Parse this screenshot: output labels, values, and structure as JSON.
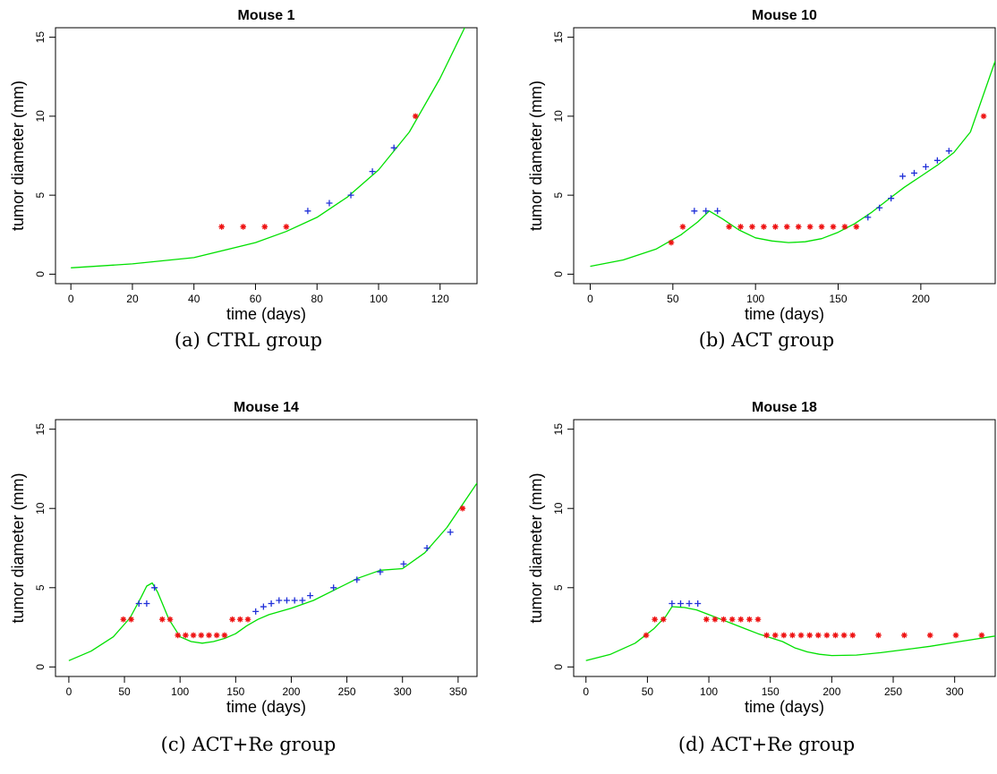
{
  "colors": {
    "fit": "#00e000",
    "observed": "#1f2fd8",
    "censored": "#ee1111",
    "axis": "#000000"
  },
  "chart_data": [
    {
      "type": "scatter",
      "title": "Mouse 1",
      "caption": "(a) CTRL group",
      "xlabel": "time (days)",
      "ylabel": "tumor diameter (mm)",
      "xlim": [
        -5,
        132
      ],
      "ylim": [
        -0.6,
        15.6
      ],
      "xticks": [
        0,
        20,
        40,
        60,
        80,
        100,
        120
      ],
      "yticks": [
        0,
        5,
        10,
        15
      ],
      "series": [
        {
          "marker": "plus",
          "color": "#1f2fd8",
          "x": [
            77,
            84,
            91,
            98,
            105
          ],
          "y": [
            4,
            4.5,
            5,
            6.5,
            8
          ]
        },
        {
          "marker": "asterisk",
          "color": "#ee1111",
          "x": [
            49,
            56,
            63,
            70,
            112
          ],
          "y": [
            3,
            3,
            3,
            3,
            10
          ]
        },
        {
          "marker": "line",
          "color": "#00e000",
          "x": [
            0,
            20,
            40,
            60,
            70,
            80,
            90,
            100,
            110,
            120,
            128
          ],
          "y": [
            0.4,
            0.65,
            1.05,
            2.0,
            2.7,
            3.6,
            4.9,
            6.6,
            9.0,
            12.4,
            15.6
          ]
        }
      ]
    },
    {
      "type": "scatter",
      "title": "Mouse 10",
      "caption": "(b) ACT group",
      "xlabel": "time (days)",
      "ylabel": "tumor diameter (mm)",
      "xlim": [
        -10,
        245
      ],
      "ylim": [
        -0.6,
        15.6
      ],
      "xticks": [
        0,
        50,
        100,
        150,
        200
      ],
      "yticks": [
        0,
        5,
        10,
        15
      ],
      "series": [
        {
          "marker": "plus",
          "color": "#1f2fd8",
          "x": [
            63,
            70,
            77,
            168,
            175,
            182,
            189,
            196,
            203,
            210,
            217
          ],
          "y": [
            4,
            4,
            4,
            3.6,
            4.2,
            4.8,
            6.2,
            6.4,
            6.8,
            7.2,
            7.8
          ]
        },
        {
          "marker": "asterisk",
          "color": "#ee1111",
          "x": [
            49,
            56,
            84,
            91,
            98,
            105,
            112,
            119,
            126,
            133,
            140,
            147,
            154,
            161,
            238
          ],
          "y": [
            2,
            3,
            3,
            3,
            3,
            3,
            3,
            3,
            3,
            3,
            3,
            3,
            3,
            3,
            10
          ]
        },
        {
          "marker": "line",
          "color": "#00e000",
          "x": [
            0,
            20,
            40,
            55,
            65,
            72,
            80,
            90,
            100,
            110,
            120,
            130,
            140,
            150,
            160,
            170,
            180,
            190,
            200,
            210,
            220,
            230,
            245
          ],
          "y": [
            0.5,
            0.9,
            1.6,
            2.5,
            3.3,
            4.0,
            3.5,
            2.8,
            2.3,
            2.1,
            2.0,
            2.05,
            2.25,
            2.65,
            3.2,
            3.9,
            4.7,
            5.5,
            6.2,
            6.9,
            7.7,
            9.0,
            13.5
          ]
        }
      ]
    },
    {
      "type": "scatter",
      "title": "Mouse 14",
      "caption": "(c) ACT+Re group",
      "xlabel": "time (days)",
      "ylabel": "tumor diameter (mm)",
      "xlim": [
        -12,
        367
      ],
      "ylim": [
        -0.6,
        15.6
      ],
      "xticks": [
        0,
        50,
        100,
        150,
        200,
        250,
        300,
        350
      ],
      "yticks": [
        0,
        5,
        10,
        15
      ],
      "series": [
        {
          "marker": "plus",
          "color": "#1f2fd8",
          "x": [
            63,
            70,
            77,
            168,
            175,
            182,
            189,
            196,
            203,
            210,
            217,
            238,
            259,
            280,
            301,
            322,
            343
          ],
          "y": [
            4,
            4,
            5,
            3.5,
            3.8,
            4,
            4.2,
            4.2,
            4.2,
            4.2,
            4.5,
            5,
            5.5,
            6,
            6.5,
            7.5,
            8.5
          ]
        },
        {
          "marker": "asterisk",
          "color": "#ee1111",
          "x": [
            49,
            56,
            84,
            91,
            98,
            105,
            112,
            119,
            126,
            133,
            140,
            147,
            154,
            161,
            354
          ],
          "y": [
            3,
            3,
            3,
            3,
            2,
            2,
            2,
            2,
            2,
            2,
            2,
            3,
            3,
            3,
            10
          ]
        },
        {
          "marker": "line",
          "color": "#00e000",
          "x": [
            0,
            20,
            40,
            55,
            65,
            70,
            75,
            80,
            90,
            100,
            110,
            120,
            130,
            140,
            150,
            160,
            170,
            180,
            200,
            220,
            240,
            260,
            280,
            300,
            320,
            340,
            367
          ],
          "y": [
            0.4,
            1.0,
            1.9,
            3.1,
            4.4,
            5.1,
            5.3,
            4.7,
            3.0,
            1.9,
            1.6,
            1.5,
            1.6,
            1.8,
            2.1,
            2.6,
            3.0,
            3.3,
            3.7,
            4.2,
            4.9,
            5.6,
            6.1,
            6.2,
            7.2,
            8.8,
            11.6
          ]
        }
      ]
    },
    {
      "type": "scatter",
      "title": "Mouse 18",
      "caption": "(d) ACT+Re group",
      "xlabel": "time (days)",
      "ylabel": "tumor diameter (mm)",
      "xlim": [
        -10,
        333
      ],
      "ylim": [
        -0.6,
        15.6
      ],
      "xticks": [
        0,
        50,
        100,
        150,
        200,
        250,
        300
      ],
      "yticks": [
        0,
        5,
        10,
        15
      ],
      "series": [
        {
          "marker": "plus",
          "color": "#1f2fd8",
          "x": [
            70,
            77,
            84,
            91
          ],
          "y": [
            4,
            4,
            4,
            4
          ]
        },
        {
          "marker": "asterisk",
          "color": "#ee1111",
          "x": [
            49,
            56,
            63,
            98,
            105,
            112,
            119,
            126,
            133,
            140,
            147,
            154,
            161,
            168,
            175,
            182,
            189,
            196,
            203,
            210,
            217,
            238,
            259,
            280,
            301,
            322
          ],
          "y": [
            2,
            3,
            3,
            3,
            3,
            3,
            3,
            3,
            3,
            3,
            2,
            2,
            2,
            2,
            2,
            2,
            2,
            2,
            2,
            2,
            2,
            2,
            2,
            2,
            2,
            2
          ]
        },
        {
          "marker": "line",
          "color": "#00e000",
          "x": [
            0,
            20,
            40,
            55,
            65,
            70,
            80,
            90,
            100,
            110,
            120,
            130,
            140,
            150,
            160,
            170,
            180,
            190,
            200,
            220,
            240,
            260,
            280,
            300,
            333
          ],
          "y": [
            0.4,
            0.8,
            1.5,
            2.4,
            3.2,
            3.8,
            3.75,
            3.6,
            3.3,
            3.0,
            2.7,
            2.4,
            2.1,
            1.85,
            1.6,
            1.2,
            0.95,
            0.8,
            0.72,
            0.75,
            0.9,
            1.1,
            1.3,
            1.55,
            1.95
          ]
        }
      ]
    }
  ]
}
